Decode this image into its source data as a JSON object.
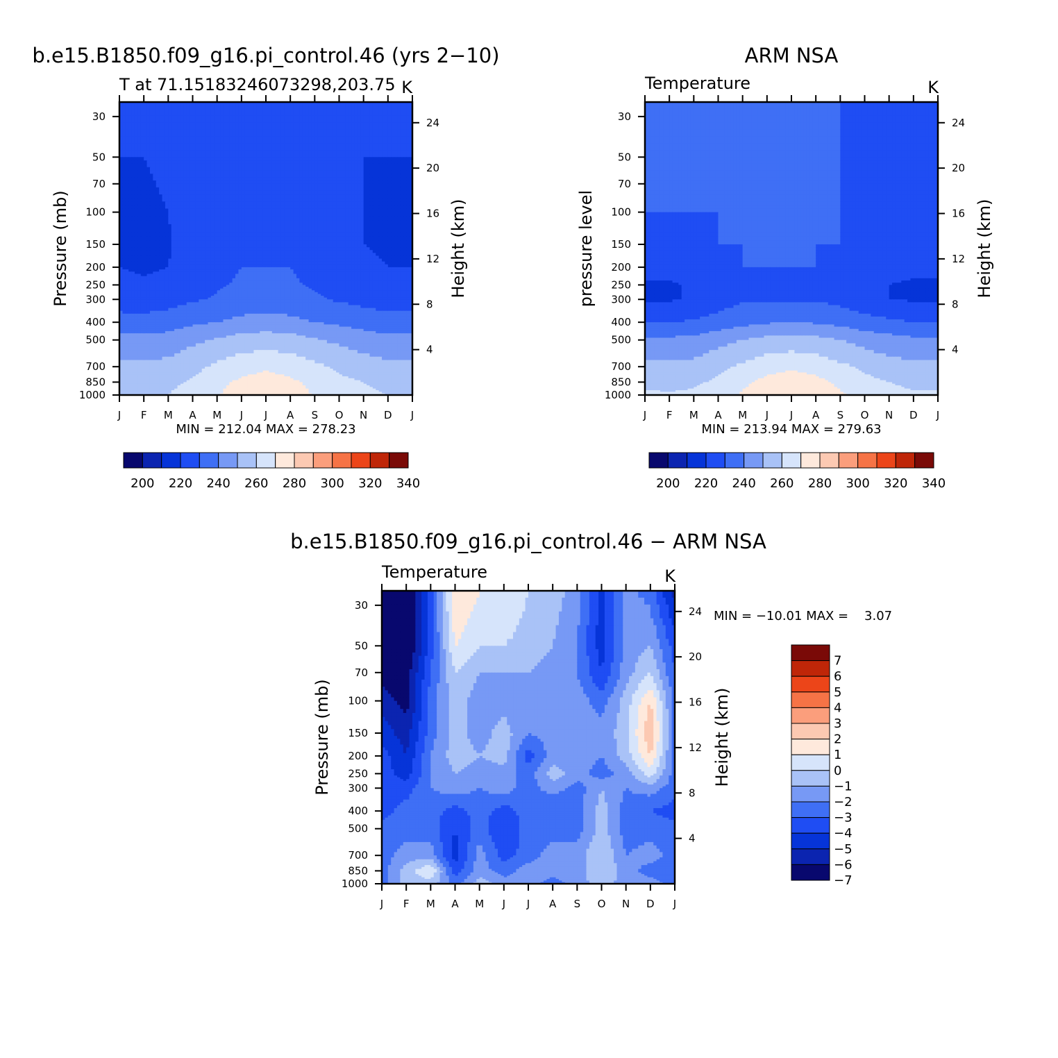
{
  "colors": {
    "scale": [
      "#08086e",
      "#0b24b0",
      "#0634d8",
      "#1f4df3",
      "#3f6ff5",
      "#7799f5",
      "#a9c2f7",
      "#d6e4fb",
      "#fee9dc",
      "#fcc9b2",
      "#fb9e7c",
      "#f67346",
      "#ec4519",
      "#bf2608",
      "#7a0a07"
    ],
    "diff_scale": [
      "#08086e",
      "#0b24b0",
      "#0634d8",
      "#1f4df3",
      "#3f6ff5",
      "#7799f5",
      "#a9c2f7",
      "#d6e4fb",
      "#fee9dc",
      "#fcc9b2",
      "#fb9e7c",
      "#f67346",
      "#ec4519",
      "#bf2608",
      "#7a0a07"
    ]
  },
  "panels": {
    "model": {
      "title": "b.e15.B1850.f09_g16.pi_control.46 (yrs 2−10)",
      "left_label": "T at 71.15183246073298,203.75",
      "right_label": "K",
      "ylabel": "Pressure (mb)",
      "y2label": "Height (km)",
      "minmax": "MIN = 212.04 MAX = 278.23"
    },
    "obs": {
      "title": "ARM NSA",
      "left_label": "Temperature",
      "right_label": "K",
      "ylabel": "pressure level",
      "y2label": "Height (km)",
      "minmax": "MIN = 213.94 MAX = 279.63"
    },
    "diff": {
      "title": "b.e15.B1850.f09_g16.pi_control.46 − ARM NSA",
      "left_label": "Temperature",
      "right_label": "K",
      "ylabel": "Pressure (mb)",
      "y2label": "Height (km)",
      "minmax": "MIN = −10.01 MAX =    3.07"
    }
  },
  "chart_data": [
    {
      "type": "heatmap",
      "title": "b.e15.B1850.f09_g16.pi_control.46 (yrs 2−10)",
      "x": [
        "J",
        "F",
        "M",
        "A",
        "M",
        "J",
        "J",
        "A",
        "S",
        "O",
        "N",
        "D",
        "J"
      ],
      "pressure_ticks": [
        30,
        50,
        70,
        100,
        150,
        200,
        250,
        300,
        400,
        500,
        700,
        850,
        1000
      ],
      "height_ticks": [
        4,
        8,
        12,
        16,
        20,
        24
      ],
      "ylabel": "Pressure (mb)",
      "y2label": "Height (km)",
      "ylim": [
        1000,
        25
      ],
      "colorbar_ticks": [
        200,
        220,
        240,
        260,
        280,
        300,
        320,
        340
      ],
      "min": 212.04,
      "max": 278.23,
      "values_K": [
        [
          222,
          221,
          221,
          221,
          221,
          222,
          223,
          223,
          222,
          221,
          221,
          221,
          222
        ],
        [
          220,
          220,
          222,
          225,
          226,
          226,
          226,
          226,
          226,
          224,
          220,
          220,
          220
        ],
        [
          219,
          219,
          221,
          225,
          227,
          227,
          227,
          227,
          227,
          225,
          220,
          219,
          219
        ],
        [
          218,
          218,
          220,
          226,
          228,
          228,
          228,
          228,
          228,
          226,
          220,
          218,
          218
        ],
        [
          218,
          218,
          219,
          225,
          228,
          229,
          229,
          229,
          228,
          225,
          220,
          218,
          218
        ],
        [
          220,
          219,
          220,
          225,
          228,
          230,
          230,
          230,
          228,
          226,
          222,
          220,
          220
        ],
        [
          222,
          221,
          222,
          226,
          229,
          231,
          231,
          231,
          229,
          227,
          224,
          222,
          222
        ],
        [
          225,
          224,
          226,
          229,
          231,
          233,
          233,
          233,
          231,
          229,
          227,
          225,
          225
        ],
        [
          234,
          234,
          235,
          238,
          240,
          243,
          244,
          243,
          240,
          238,
          236,
          234,
          234
        ],
        [
          243,
          243,
          244,
          248,
          251,
          254,
          255,
          254,
          251,
          248,
          245,
          243,
          243
        ],
        [
          252,
          252,
          253,
          257,
          262,
          266,
          268,
          266,
          262,
          258,
          255,
          252,
          252
        ],
        [
          257,
          257,
          258,
          261,
          267,
          272,
          275,
          272,
          267,
          262,
          260,
          257,
          257
        ],
        [
          260,
          259,
          260,
          264,
          269,
          276,
          278,
          276,
          269,
          265,
          262,
          260,
          260
        ]
      ]
    },
    {
      "type": "heatmap",
      "title": "ARM NSA",
      "x": [
        "J",
        "F",
        "M",
        "A",
        "M",
        "J",
        "J",
        "A",
        "S",
        "O",
        "N",
        "D",
        "J"
      ],
      "pressure_ticks": [
        30,
        50,
        70,
        100,
        150,
        200,
        250,
        300,
        400,
        500,
        700,
        850,
        1000
      ],
      "height_ticks": [
        4,
        8,
        12,
        16,
        20,
        24
      ],
      "ylabel": "pressure level",
      "y2label": "Height (km)",
      "ylim": [
        1000,
        25
      ],
      "colorbar_ticks": [
        200,
        220,
        240,
        260,
        280,
        300,
        320,
        340
      ],
      "min": 213.94,
      "max": 279.63,
      "values_K": [
        [
          230,
          230,
          230,
          230,
          230,
          230,
          230,
          230,
          230,
          228,
          225,
          225,
          229
        ],
        [
          230,
          230,
          230,
          230,
          230,
          230,
          230,
          230,
          230,
          228,
          225,
          225,
          228
        ],
        [
          230,
          230,
          230,
          230,
          230,
          230,
          230,
          230,
          230,
          228,
          225,
          225,
          228
        ],
        [
          230,
          230,
          230,
          230,
          230,
          230,
          230,
          230,
          230,
          227,
          224,
          224,
          226
        ],
        [
          227,
          227,
          228,
          230,
          230,
          230,
          230,
          230,
          230,
          226,
          223,
          223,
          224
        ],
        [
          224,
          223,
          225,
          228,
          230,
          230,
          230,
          230,
          228,
          224,
          222,
          222,
          222
        ],
        [
          219,
          219,
          221,
          225,
          229,
          229,
          229,
          229,
          227,
          223,
          220,
          219,
          219
        ],
        [
          219,
          219,
          221,
          225,
          229,
          229,
          229,
          229,
          227,
          223,
          220,
          219,
          219
        ],
        [
          230,
          230,
          231,
          234,
          237,
          239,
          240,
          239,
          237,
          234,
          232,
          230,
          230
        ],
        [
          242,
          242,
          243,
          247,
          250,
          253,
          254,
          253,
          250,
          246,
          244,
          242,
          242
        ],
        [
          252,
          252,
          253,
          257,
          262,
          266,
          268,
          266,
          262,
          258,
          254,
          252,
          252
        ],
        [
          257,
          257,
          258,
          262,
          268,
          273,
          276,
          273,
          268,
          263,
          260,
          257,
          257
        ],
        [
          262,
          261,
          262,
          266,
          271,
          278,
          279,
          278,
          271,
          267,
          264,
          262,
          262
        ]
      ]
    },
    {
      "type": "heatmap",
      "title": "b.e15.B1850.f09_g16.pi_control.46 − ARM NSA",
      "x": [
        "J",
        "F",
        "M",
        "A",
        "M",
        "J",
        "J",
        "A",
        "S",
        "O",
        "N",
        "D",
        "J"
      ],
      "pressure_ticks": [
        30,
        50,
        70,
        100,
        150,
        200,
        250,
        300,
        400,
        500,
        700,
        850,
        1000
      ],
      "height_ticks": [
        4,
        8,
        12,
        16,
        20,
        24
      ],
      "ylabel": "Pressure (mb)",
      "y2label": "Height (km)",
      "ylim": [
        1000,
        25
      ],
      "colorbar_ticks": [
        7,
        6,
        5,
        4,
        3,
        2,
        1,
        0,
        -1,
        -2,
        -3,
        -4,
        -5,
        -6,
        -7
      ],
      "colorbar_labels": [
        "7",
        "6",
        "5",
        "4",
        "3",
        "2",
        "1",
        "0",
        "−1",
        "−2",
        "−3",
        "−4",
        "−5",
        "−6",
        "−7"
      ],
      "min": -10.01,
      "max": 3.07,
      "values_K": [
        [
          -8,
          -8,
          -4,
          1.5,
          0.5,
          0.3,
          -0.5,
          -1,
          -2,
          -5,
          -2,
          -3,
          -6
        ],
        [
          -8,
          -8,
          -4,
          0.5,
          -0.5,
          -0.5,
          -0.8,
          -1.5,
          -2.5,
          -5,
          -2,
          -1.5,
          -4
        ],
        [
          -7,
          -7,
          -3.5,
          -0.5,
          -1.5,
          -1.5,
          -1.5,
          -2,
          -2.5,
          -4.5,
          -2,
          -0.5,
          -3.5
        ],
        [
          -6,
          -7,
          -3,
          -1,
          -2,
          -2,
          -2,
          -2,
          -2,
          -3,
          -1,
          1.5,
          -3
        ],
        [
          -5,
          -6,
          -3,
          -1,
          -2,
          -1,
          -2.5,
          -2,
          -1.5,
          -2,
          -1,
          2.5,
          -3
        ],
        [
          -4,
          -5.5,
          -2.5,
          -1,
          -1.5,
          -1,
          -4,
          -2,
          -2,
          -2.5,
          -1,
          1.5,
          -3
        ],
        [
          -4,
          -5,
          -2.5,
          -1.5,
          -2,
          -2,
          -3,
          -1,
          -2,
          -3,
          -2,
          0,
          -3
        ],
        [
          -4,
          -4,
          -2.5,
          -2,
          -2.5,
          -2,
          -3,
          -2,
          -3,
          -1.5,
          -2.5,
          -2,
          -3
        ],
        [
          -4,
          -3,
          -3,
          -4,
          -3,
          -4,
          -3,
          -3.5,
          -3,
          -1,
          -3,
          -3.5,
          -4
        ],
        [
          -3,
          -3,
          -3,
          -4.5,
          -3,
          -4.5,
          -3,
          -3,
          -3,
          -1,
          -3,
          -3,
          -3
        ],
        [
          -3,
          -2,
          -2,
          -5,
          -2,
          -4,
          -3,
          -2,
          -2,
          -0.5,
          -2.5,
          -2,
          -3
        ],
        [
          -3,
          -1,
          0.5,
          -4,
          -2,
          -3,
          -2,
          -2,
          -2,
          -0.5,
          -2,
          -3,
          -3
        ],
        [
          -3,
          -1,
          -1,
          -3,
          -1,
          -2,
          -2,
          -3,
          -2,
          -1,
          -2,
          -2,
          -3
        ]
      ]
    }
  ]
}
